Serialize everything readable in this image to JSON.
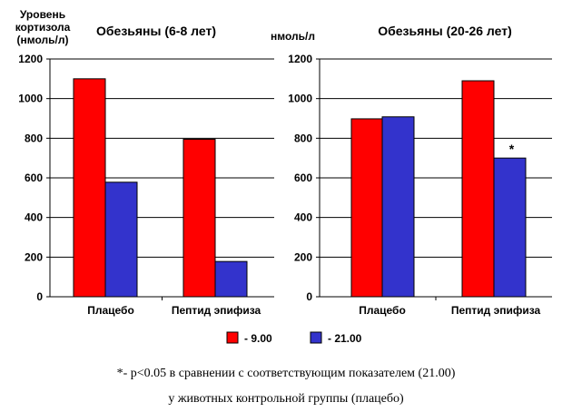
{
  "chart_data": [
    {
      "type": "bar",
      "title": "Обезьяны (6-8 лет)",
      "ylabel": "Уровень кортизола (нмоль/л)",
      "ylabel_lines": [
        "Уровень",
        "кортизола",
        "(нмоль/л)"
      ],
      "categories": [
        "Плацебо",
        "Пептид эпифиза"
      ],
      "series": [
        {
          "name": "- 9.00",
          "values": [
            1100,
            795
          ]
        },
        {
          "name": "- 21.00",
          "values": [
            578,
            178
          ]
        }
      ],
      "ylim": [
        0,
        1200
      ],
      "yticks": [
        0,
        200,
        400,
        600,
        800,
        1000,
        1200
      ],
      "annotations": []
    },
    {
      "type": "bar",
      "title": "Обезьяны (20-26 лет)",
      "ylabel": "нмоль/л",
      "ylabel_lines": [
        "нмоль/л"
      ],
      "categories": [
        "Плацебо",
        "Пептид эпифиза"
      ],
      "series": [
        {
          "name": "- 9.00",
          "values": [
            898,
            1090
          ]
        },
        {
          "name": "- 21.00",
          "values": [
            908,
            700
          ]
        }
      ],
      "ylim": [
        0,
        1200
      ],
      "yticks": [
        0,
        200,
        400,
        600,
        800,
        1000,
        1200
      ],
      "annotations": [
        {
          "text": "*",
          "category": 1,
          "series": 1
        }
      ]
    }
  ],
  "legend": [
    {
      "label": "- 9.00",
      "color": "#ff0000"
    },
    {
      "label": "- 21.00",
      "color": "#3333cc"
    }
  ],
  "colors": {
    "series": [
      "#ff0000",
      "#3333cc"
    ],
    "edge": "#000000"
  },
  "footnote": {
    "line1": "*- p<0.05 в сравнении с соответствующим показателем (21.00)",
    "line2": "у животных контрольной группы (плацебо)"
  }
}
